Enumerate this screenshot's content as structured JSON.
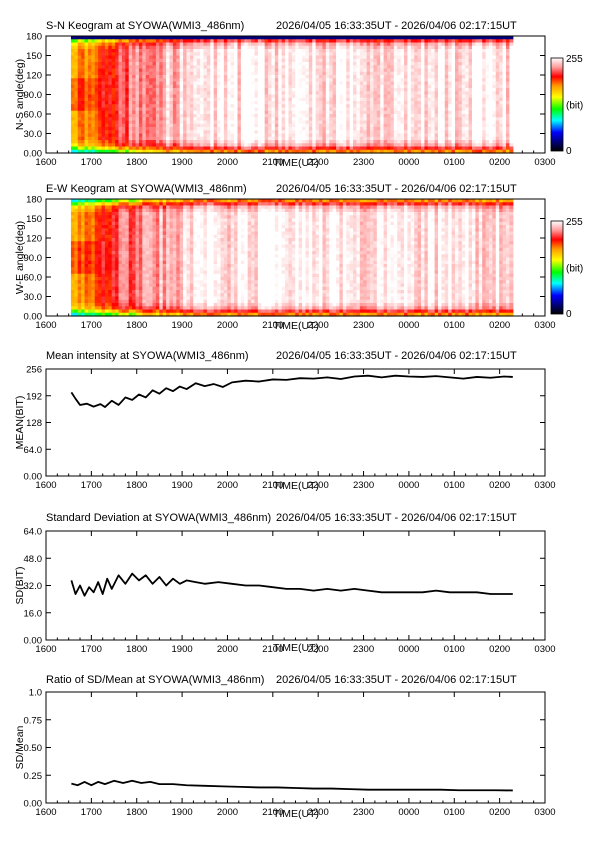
{
  "chart_data": [
    {
      "type": "heatmap",
      "title": "S-N Keogram at SYOWA(WMI3_486nm)",
      "time_range": "2026/04/05 16:33:35UT - 2026/04/06 02:17:15UT",
      "xlabel": "TIME(UT)",
      "ylabel": "N-S angle(deg)",
      "x_ticks": [
        "1600",
        "1700",
        "1800",
        "1900",
        "2000",
        "2100",
        "2200",
        "2300",
        "0000",
        "0100",
        "0200",
        "0300"
      ],
      "y_ticks": [
        "0.00",
        "30.0",
        "60.0",
        "90.0",
        "120",
        "150",
        "180"
      ],
      "ylim": [
        0,
        180
      ],
      "colorbar": {
        "min_label": "0",
        "max_label": "255",
        "unit": "(bit)"
      },
      "data_x_range": [
        16.55,
        26.29
      ],
      "note_values": {
        "edge_band_intensity": "low (green/yellow) near 0 and 150-180 deg",
        "center_intensity": "saturated (white) after ~2000 UT",
        "top_row_180deg": "dark blue (0)"
      }
    },
    {
      "type": "heatmap",
      "title": "E-W Keogram at SYOWA(WMI3_486nm)",
      "time_range": "2026/04/05 16:33:35UT - 2026/04/06 02:17:15UT",
      "xlabel": "TIME(UT)",
      "ylabel": "W-E angle(deg)",
      "x_ticks": [
        "1600",
        "1700",
        "1800",
        "1900",
        "2000",
        "2100",
        "2200",
        "2300",
        "0000",
        "0100",
        "0200",
        "0300"
      ],
      "y_ticks": [
        "0.00",
        "30.0",
        "60.0",
        "90.0",
        "120",
        "150",
        "180"
      ],
      "ylim": [
        0,
        180
      ],
      "colorbar": {
        "min_label": "0",
        "max_label": "255",
        "unit": "(bit)"
      },
      "data_x_range": [
        16.55,
        26.29
      ]
    },
    {
      "type": "line",
      "title": "Mean intensity at SYOWA(WMI3_486nm)",
      "time_range": "2026/04/05 16:33:35UT - 2026/04/06 02:17:15UT",
      "xlabel": "TIME(UT)",
      "ylabel": "MEAN(BIT)",
      "x_ticks": [
        "1600",
        "1700",
        "1800",
        "1900",
        "2000",
        "2100",
        "2200",
        "2300",
        "0000",
        "0100",
        "0200",
        "0300"
      ],
      "y_ticks": [
        "0.00",
        "64.0",
        "128",
        "192",
        "256"
      ],
      "ylim": [
        0,
        256
      ],
      "xlim": [
        16,
        27
      ],
      "series": [
        {
          "x": [
            16.56,
            16.65,
            16.75,
            16.9,
            17.05,
            17.2,
            17.3,
            17.45,
            17.6,
            17.75,
            17.9,
            18.05,
            18.2,
            18.35,
            18.5,
            18.65,
            18.8,
            18.95,
            19.1,
            19.3,
            19.5,
            19.7,
            19.9,
            20.1,
            20.4,
            20.7,
            21.0,
            21.3,
            21.6,
            21.9,
            22.2,
            22.5,
            22.8,
            23.1,
            23.4,
            23.7,
            24.0,
            24.3,
            24.6,
            24.9,
            25.2,
            25.5,
            25.8,
            26.1,
            26.29
          ],
          "y": [
            200,
            185,
            170,
            173,
            166,
            172,
            165,
            180,
            170,
            188,
            182,
            195,
            188,
            205,
            197,
            210,
            203,
            214,
            208,
            222,
            215,
            220,
            213,
            224,
            228,
            226,
            231,
            230,
            234,
            233,
            236,
            232,
            238,
            240,
            236,
            240,
            238,
            237,
            239,
            236,
            233,
            237,
            235,
            238,
            237
          ]
        }
      ]
    },
    {
      "type": "line",
      "title": "Standard Deviation at SYOWA(WMI3_486nm)",
      "time_range": "2026/04/05 16:33:35UT - 2026/04/06 02:17:15UT",
      "xlabel": "TIME(UT)",
      "ylabel": "SD(BIT)",
      "x_ticks": [
        "1600",
        "1700",
        "1800",
        "1900",
        "2000",
        "2100",
        "2200",
        "2300",
        "0000",
        "0100",
        "0200",
        "0300"
      ],
      "y_ticks": [
        "0.00",
        "16.0",
        "32.0",
        "48.0",
        "64.0"
      ],
      "ylim": [
        0,
        64
      ],
      "xlim": [
        16,
        27
      ],
      "series": [
        {
          "x": [
            16.56,
            16.65,
            16.75,
            16.85,
            16.95,
            17.05,
            17.15,
            17.25,
            17.35,
            17.45,
            17.6,
            17.75,
            17.9,
            18.05,
            18.2,
            18.35,
            18.5,
            18.65,
            18.8,
            18.95,
            19.1,
            19.3,
            19.5,
            19.8,
            20.1,
            20.4,
            20.7,
            21.0,
            21.3,
            21.6,
            21.9,
            22.2,
            22.5,
            22.8,
            23.1,
            23.4,
            23.7,
            24.0,
            24.3,
            24.6,
            24.9,
            25.2,
            25.5,
            25.8,
            26.1,
            26.29
          ],
          "y": [
            35,
            27,
            32,
            26,
            31,
            28,
            34,
            27,
            36,
            30,
            38,
            33,
            39,
            35,
            38,
            33,
            37,
            32,
            36,
            33,
            35,
            34,
            33,
            34,
            33,
            32,
            32,
            31,
            30,
            30,
            29,
            30,
            29,
            30,
            29,
            28,
            28,
            28,
            28,
            29,
            28,
            28,
            28,
            27,
            27,
            27
          ]
        }
      ]
    },
    {
      "type": "line",
      "title": "Ratio of SD/Mean at SYOWA(WMI3_486nm)",
      "time_range": "2026/04/05 16:33:35UT - 2026/04/06 02:17:15UT",
      "xlabel": "TIME(UT)",
      "ylabel": "SD/Mean",
      "x_ticks": [
        "1600",
        "1700",
        "1800",
        "1900",
        "2000",
        "2100",
        "2200",
        "2300",
        "0000",
        "0100",
        "0200",
        "0300"
      ],
      "y_ticks": [
        "0.00",
        "0.25",
        "0.50",
        "0.75",
        "1.0"
      ],
      "ylim": [
        0,
        1.0
      ],
      "xlim": [
        16,
        27
      ],
      "series": [
        {
          "x": [
            16.56,
            16.7,
            16.85,
            17.0,
            17.15,
            17.3,
            17.5,
            17.7,
            17.9,
            18.1,
            18.3,
            18.5,
            18.8,
            19.1,
            19.5,
            19.9,
            20.3,
            20.7,
            21.1,
            21.5,
            21.9,
            22.3,
            22.7,
            23.1,
            23.5,
            23.9,
            24.3,
            24.7,
            25.1,
            25.5,
            25.9,
            26.29
          ],
          "y": [
            0.175,
            0.16,
            0.19,
            0.16,
            0.19,
            0.17,
            0.2,
            0.18,
            0.2,
            0.18,
            0.19,
            0.17,
            0.17,
            0.16,
            0.155,
            0.15,
            0.145,
            0.14,
            0.14,
            0.135,
            0.13,
            0.13,
            0.125,
            0.12,
            0.12,
            0.12,
            0.12,
            0.12,
            0.115,
            0.115,
            0.115,
            0.113
          ]
        }
      ]
    }
  ]
}
